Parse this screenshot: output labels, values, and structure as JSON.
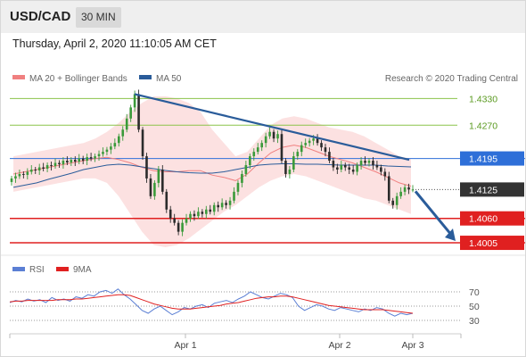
{
  "header": {
    "symbol": "USD/CAD",
    "interval": "30 MIN"
  },
  "timestamp": "Thursday, April 2, 2020 11:10:05 AM CET",
  "legend": {
    "items": [
      {
        "label": "MA 20 + Bollinger Bands",
        "color": "#f08080"
      },
      {
        "label": "MA 50",
        "color": "#2a5c9a"
      }
    ],
    "credit": "Research © 2020 Trading Central"
  },
  "rsi_legend": {
    "items": [
      {
        "label": "RSI",
        "color": "#5b7fd4"
      },
      {
        "label": "9MA",
        "color": "#e02020"
      }
    ]
  },
  "chart_data": {
    "type": "candlestick",
    "symbol": "USD/CAD",
    "timeframe": "30 MIN",
    "price_range": [
      1.3985,
      1.4355
    ],
    "current_price": "1.4125",
    "levels": [
      {
        "value": 1.433,
        "label": "1.4330",
        "kind": "resistance",
        "color": "#8bc34a"
      },
      {
        "value": 1.427,
        "label": "1.4270",
        "kind": "resistance",
        "color": "#8bc34a"
      },
      {
        "value": 1.4195,
        "label": "1.4195",
        "kind": "pivot",
        "color": "#2e6fd8"
      },
      {
        "value": 1.406,
        "label": "1.4060",
        "kind": "support",
        "color": "#e02020"
      },
      {
        "value": 1.4005,
        "label": "1.4005",
        "kind": "support",
        "color": "#e02020"
      }
    ],
    "x_ticks": [
      "Apr 1",
      "Apr 2",
      "Apr 3"
    ],
    "trendline": {
      "from": 1.434,
      "to": 1.4192,
      "direction": "downward"
    },
    "forecast_arrow": {
      "from": 1.4125,
      "to": 1.4005
    },
    "closes": [
      1.415,
      1.4155,
      1.416,
      1.4158,
      1.4165,
      1.417,
      1.4168,
      1.4175,
      1.4172,
      1.418,
      1.4178,
      1.4185,
      1.4182,
      1.419,
      1.4186,
      1.4192,
      1.4188,
      1.4195,
      1.419,
      1.4198,
      1.4195,
      1.42,
      1.4205,
      1.421,
      1.4215,
      1.4222,
      1.423,
      1.4245,
      1.426,
      1.4285,
      1.431,
      1.434,
      1.426,
      1.42,
      1.415,
      1.411,
      1.414,
      1.417,
      1.412,
      1.408,
      1.406,
      1.405,
      1.403,
      1.405,
      1.406,
      1.407,
      1.4065,
      1.4075,
      1.407,
      1.408,
      1.4075,
      1.409,
      1.4085,
      1.4095,
      1.409,
      1.41,
      1.412,
      1.414,
      1.416,
      1.418,
      1.42,
      1.421,
      1.422,
      1.423,
      1.4245,
      1.4255,
      1.424,
      1.425,
      1.419,
      1.416,
      1.417,
      1.42,
      1.421,
      1.4225,
      1.423,
      1.4235,
      1.424,
      1.423,
      1.422,
      1.421,
      1.419,
      1.4175,
      1.417,
      1.418,
      1.4175,
      1.417,
      1.4165,
      1.418,
      1.419,
      1.4185,
      1.419,
      1.418,
      1.4175,
      1.4165,
      1.4155,
      1.41,
      1.409,
      1.411,
      1.412,
      1.413,
      1.4125,
      1.4125
    ],
    "bollinger_upper": [
      1.42,
      1.4205,
      1.421,
      1.4215,
      1.422,
      1.4225,
      1.423,
      1.424,
      1.4255,
      1.4275,
      1.43,
      1.432,
      1.4335,
      1.4335,
      1.433,
      1.432,
      1.43,
      1.426,
      1.423,
      1.42,
      1.421,
      1.424,
      1.427,
      1.4285,
      1.429,
      1.4285,
      1.4275,
      1.4265,
      1.426,
      1.4255,
      1.4245,
      1.423,
      1.4215,
      1.42,
      1.4195
    ],
    "bollinger_lower": [
      1.412,
      1.4125,
      1.413,
      1.4135,
      1.414,
      1.4145,
      1.415,
      1.415,
      1.414,
      1.411,
      1.407,
      1.403,
      1.4,
      1.3995,
      1.4,
      1.4015,
      1.4035,
      1.4055,
      1.4075,
      1.409,
      1.411,
      1.413,
      1.4145,
      1.4155,
      1.416,
      1.4155,
      1.4145,
      1.4135,
      1.4125,
      1.4115,
      1.4105,
      1.41,
      1.409,
      1.408,
      1.407
    ],
    "ma50": [
      1.413,
      1.4135,
      1.414,
      1.4148,
      1.4155,
      1.4162,
      1.417,
      1.4175,
      1.418,
      1.4182,
      1.418,
      1.4176,
      1.4172,
      1.4168,
      1.4165,
      1.4163,
      1.4162,
      1.4162,
      1.4165,
      1.417,
      1.4175,
      1.418,
      1.4182,
      1.4183,
      1.4183,
      1.4182,
      1.4182,
      1.4181,
      1.418,
      1.418,
      1.418,
      1.418,
      1.4178,
      1.4177,
      1.4176
    ],
    "rsi": {
      "levels": [
        70,
        50,
        30
      ],
      "range": [
        20,
        80
      ],
      "rsi_values": [
        55,
        58,
        56,
        60,
        57,
        59,
        55,
        62,
        58,
        60,
        57,
        63,
        61,
        66,
        64,
        70,
        72,
        68,
        74,
        66,
        60,
        52,
        44,
        40,
        46,
        50,
        44,
        38,
        42,
        48,
        46,
        50,
        52,
        48,
        54,
        56,
        58,
        55,
        60,
        64,
        70,
        66,
        62,
        60,
        64,
        68,
        66,
        62,
        50,
        44,
        48,
        52,
        50,
        46,
        44,
        48,
        46,
        44,
        42,
        46,
        44,
        48,
        46,
        40,
        36,
        40,
        38,
        40
      ],
      "ma_values": [
        56,
        57,
        57,
        58,
        58,
        58,
        58,
        58,
        59,
        59,
        59,
        60,
        60,
        61,
        62,
        63,
        64,
        65,
        66,
        66,
        65,
        62,
        59,
        56,
        53,
        51,
        49,
        47,
        46,
        46,
        46,
        47,
        48,
        49,
        50,
        51,
        53,
        54,
        55,
        57,
        59,
        61,
        62,
        63,
        63,
        64,
        64,
        63,
        61,
        59,
        57,
        55,
        53,
        51,
        50,
        49,
        48,
        47,
        46,
        45,
        45,
        45,
        45,
        44,
        43,
        42,
        41,
        40
      ]
    }
  }
}
